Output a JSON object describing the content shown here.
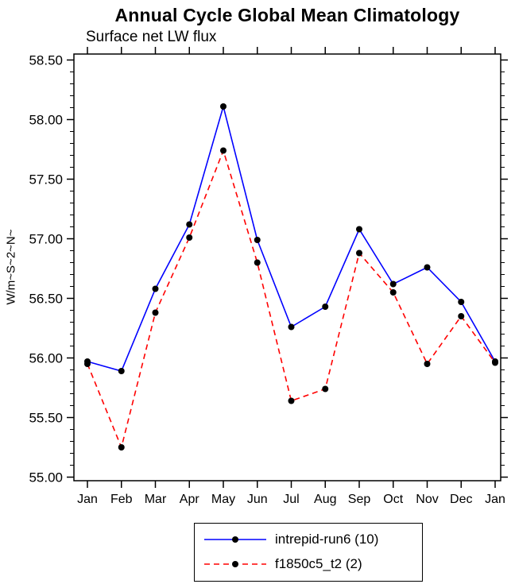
{
  "chart_data": {
    "type": "line",
    "title": "Annual Cycle Global Mean Climatology",
    "subtitle": "Surface net LW flux",
    "xlabel": "",
    "ylabel": "W/m~S~2~N~",
    "categories": [
      "Jan",
      "Feb",
      "Mar",
      "Apr",
      "May",
      "Jun",
      "Jul",
      "Aug",
      "Sep",
      "Oct",
      "Nov",
      "Dec",
      "Jan"
    ],
    "ylim": [
      54.97,
      58.55
    ],
    "yticks": {
      "min": 55.0,
      "max": 58.5,
      "step": 0.5,
      "minor_step": 0.1,
      "format_decimals": 2
    },
    "grid": false,
    "legend_position": "bottom-center",
    "marker_color": "#000000",
    "series": [
      {
        "name": "intrepid-run6 (10)",
        "color": "#0000ff",
        "style": "solid",
        "values": [
          55.97,
          55.89,
          56.58,
          57.12,
          58.11,
          56.99,
          56.26,
          56.43,
          57.08,
          56.62,
          56.76,
          56.47,
          55.97
        ]
      },
      {
        "name": "f1850c5_t2 (2)",
        "color": "#ff0000",
        "style": "dashed",
        "values": [
          55.95,
          55.25,
          56.38,
          57.01,
          57.74,
          56.8,
          55.64,
          55.74,
          56.88,
          56.55,
          55.95,
          56.35,
          55.96
        ]
      }
    ]
  }
}
